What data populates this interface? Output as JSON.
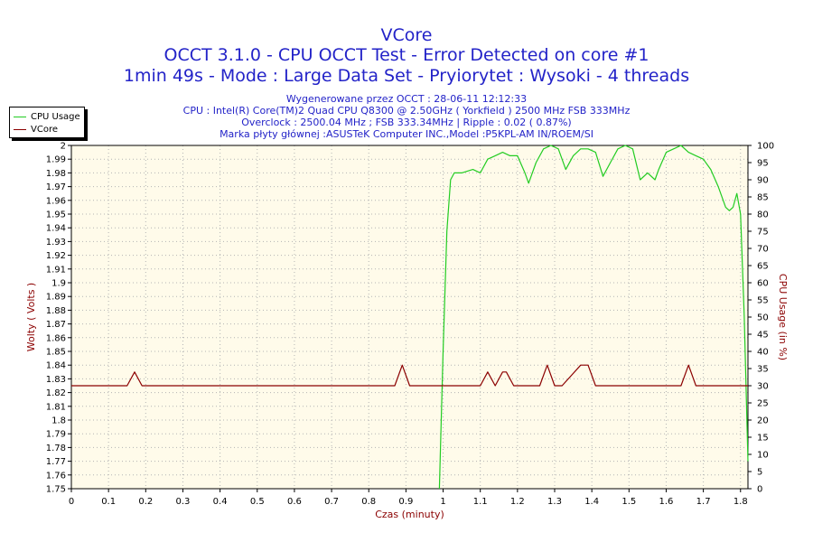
{
  "titles": {
    "line1": "VCore",
    "line2": "OCCT 3.1.0 - CPU OCCT Test - Error Detected on core #1",
    "line3": "1min 49s - Mode : Large Data Set - Pryiorytet : Wysoki - 4 threads"
  },
  "info": [
    "Wygenerowane przez OCCT : 28-06-11 12:12:33",
    "CPU : Intel(R) Core(TM)2 Quad CPU Q8300 @ 2.50GHz ( Yorkfield ) 2500 MHz FSB 333MHz",
    "Overclock : 2500.04 MHz ; FSB 333.34MHz | Ripple : 0.02 ( 0.87%)",
    "Marka płyty głównej :ASUSTeK Computer INC.,Model :P5KPL-AM IN/ROEM/SI"
  ],
  "legend": [
    {
      "name": "CPU Usage",
      "color": "#22cc22"
    },
    {
      "name": "VCore",
      "color": "#8b0000"
    }
  ],
  "chart_data": {
    "type": "line",
    "xlabel": "Czas (minuty)",
    "ylabel_left": "Wolty ( Volts )",
    "ylabel_right": "CPU Usage (in %)",
    "xlim": [
      0,
      1.82
    ],
    "ylim_left": [
      1.75,
      2.0
    ],
    "ylim_right": [
      0,
      100
    ],
    "x_ticks": [
      "0",
      "0.1",
      "0.2",
      "0.3",
      "0.4",
      "0.5",
      "0.6",
      "0.7",
      "0.8",
      "0.9",
      "1",
      "1.1",
      "1.2",
      "1.3",
      "1.4",
      "1.5",
      "1.6",
      "1.7",
      "1.8"
    ],
    "y_left_ticks": [
      "1.75",
      "1.76",
      "1.77",
      "1.78",
      "1.79",
      "1.8",
      "1.81",
      "1.82",
      "1.83",
      "1.84",
      "1.85",
      "1.86",
      "1.87",
      "1.88",
      "1.89",
      "1.9",
      "1.91",
      "1.92",
      "1.93",
      "1.94",
      "1.95",
      "1.96",
      "1.97",
      "1.98",
      "1.99",
      "2"
    ],
    "y_right_ticks": [
      "0",
      "5",
      "10",
      "15",
      "20",
      "25",
      "30",
      "35",
      "40",
      "45",
      "50",
      "55",
      "60",
      "65",
      "70",
      "75",
      "80",
      "85",
      "90",
      "95",
      "100"
    ],
    "grid": true,
    "plot_background": "#fffbea",
    "series": [
      {
        "name": "CPU Usage",
        "axis": "right",
        "color": "#22cc22",
        "x": [
          0.99,
          1.0,
          1.01,
          1.02,
          1.03,
          1.05,
          1.08,
          1.1,
          1.12,
          1.14,
          1.16,
          1.18,
          1.2,
          1.22,
          1.23,
          1.25,
          1.27,
          1.29,
          1.31,
          1.33,
          1.35,
          1.37,
          1.39,
          1.41,
          1.43,
          1.45,
          1.47,
          1.49,
          1.51,
          1.53,
          1.55,
          1.57,
          1.58,
          1.6,
          1.62,
          1.64,
          1.66,
          1.68,
          1.7,
          1.72,
          1.74,
          1.76,
          1.77,
          1.78,
          1.79,
          1.8,
          1.81,
          1.82
        ],
        "values": [
          0,
          40,
          75,
          90,
          92,
          92,
          93,
          92,
          96,
          97,
          98,
          97,
          97,
          92,
          89,
          95,
          99,
          100,
          99,
          93,
          97,
          99,
          99,
          98,
          91,
          95,
          99,
          100,
          99,
          90,
          92,
          90,
          93,
          98,
          99,
          100,
          98,
          97,
          96,
          93,
          88,
          82,
          81,
          82,
          86,
          80,
          50,
          8
        ]
      },
      {
        "name": "VCore",
        "axis": "left",
        "color": "#8b0000",
        "x": [
          0,
          0.15,
          0.17,
          0.19,
          0.87,
          0.89,
          0.91,
          1.1,
          1.12,
          1.14,
          1.16,
          1.17,
          1.19,
          1.26,
          1.28,
          1.3,
          1.32,
          1.37,
          1.39,
          1.41,
          1.43,
          1.64,
          1.66,
          1.68,
          1.82
        ],
        "values": [
          1.825,
          1.825,
          1.835,
          1.825,
          1.825,
          1.84,
          1.825,
          1.825,
          1.835,
          1.825,
          1.835,
          1.835,
          1.825,
          1.825,
          1.84,
          1.825,
          1.825,
          1.84,
          1.84,
          1.825,
          1.825,
          1.825,
          1.84,
          1.825,
          1.825
        ]
      }
    ]
  }
}
